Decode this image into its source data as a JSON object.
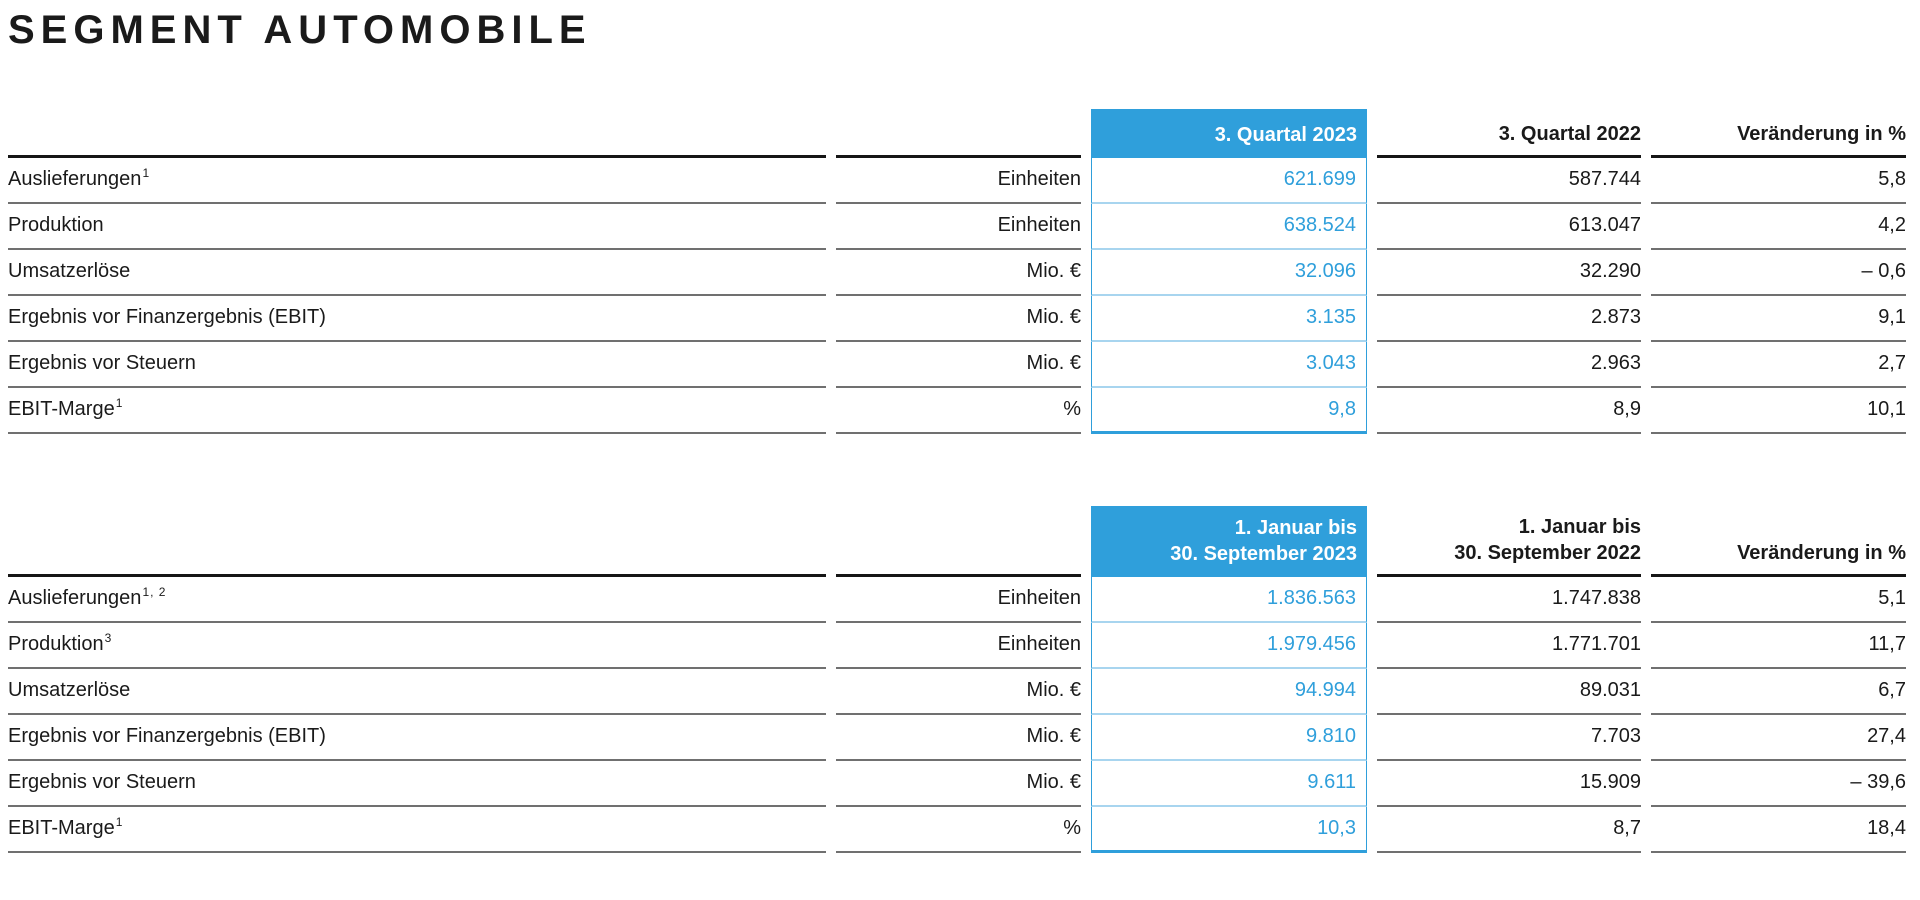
{
  "title": "SEGMENT AUTOMOBILE",
  "colors": {
    "accent_blue": "#2F9FDB",
    "light_blue_divider": "#A8D5EF",
    "row_divider_gray": "#707070",
    "header_line_black": "#161616",
    "text": "#1A1A1A"
  },
  "tables": [
    {
      "header": {
        "highlight_line1": "3. Quartal 2023",
        "highlight_line2": "",
        "prev_line1": "3. Quartal 2022",
        "prev_line2": "",
        "change": "Veränderung in %"
      },
      "rows": [
        {
          "label": "Auslieferungen",
          "sup": "1",
          "unit": "Einheiten",
          "current": "621.699",
          "previous": "587.744",
          "change": "5,8"
        },
        {
          "label": "Produktion",
          "sup": "",
          "unit": "Einheiten",
          "current": "638.524",
          "previous": "613.047",
          "change": "4,2"
        },
        {
          "label": "Umsatzerlöse",
          "sup": "",
          "unit": "Mio. €",
          "current": "32.096",
          "previous": "32.290",
          "change": "– 0,6"
        },
        {
          "label": "Ergebnis vor Finanzergebnis (EBIT)",
          "sup": "",
          "unit": "Mio. €",
          "current": "3.135",
          "previous": "2.873",
          "change": "9,1"
        },
        {
          "label": "Ergebnis vor Steuern",
          "sup": "",
          "unit": "Mio. €",
          "current": "3.043",
          "previous": "2.963",
          "change": "2,7"
        },
        {
          "label": "EBIT-Marge",
          "sup": "1",
          "unit": "%",
          "current": "9,8",
          "previous": "8,9",
          "change": "10,1"
        }
      ]
    },
    {
      "header": {
        "highlight_line1": "1. Januar bis",
        "highlight_line2": "30. September 2023",
        "prev_line1": "1. Januar bis",
        "prev_line2": "30. September 2022",
        "change": "Veränderung in %"
      },
      "rows": [
        {
          "label": "Auslieferungen",
          "sup": "1, 2",
          "unit": "Einheiten",
          "current": "1.836.563",
          "previous": "1.747.838",
          "change": "5,1"
        },
        {
          "label": "Produktion",
          "sup": "3",
          "unit": "Einheiten",
          "current": "1.979.456",
          "previous": "1.771.701",
          "change": "11,7"
        },
        {
          "label": "Umsatzerlöse",
          "sup": "",
          "unit": "Mio. €",
          "current": "94.994",
          "previous": "89.031",
          "change": "6,7"
        },
        {
          "label": "Ergebnis vor Finanzergebnis (EBIT)",
          "sup": "",
          "unit": "Mio. €",
          "current": "9.810",
          "previous": "7.703",
          "change": "27,4"
        },
        {
          "label": "Ergebnis vor Steuern",
          "sup": "",
          "unit": "Mio. €",
          "current": "9.611",
          "previous": "15.909",
          "change": "– 39,6"
        },
        {
          "label": "EBIT-Marge",
          "sup": "1",
          "unit": "%",
          "current": "10,3",
          "previous": "8,7",
          "change": "18,4"
        }
      ]
    }
  ]
}
